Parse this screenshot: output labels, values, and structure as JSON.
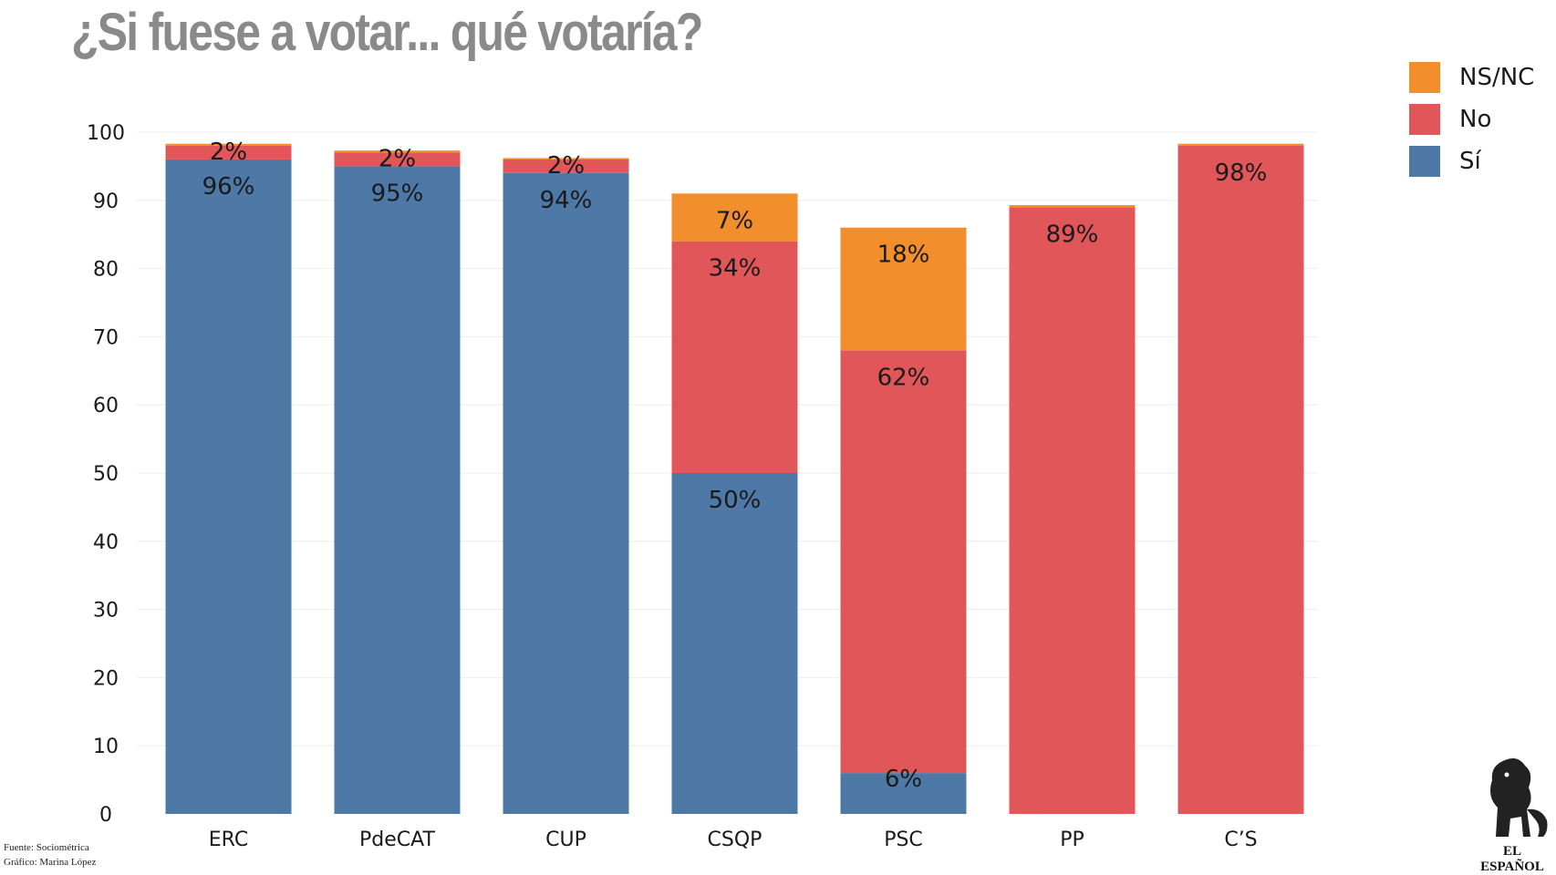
{
  "title": "¿Si fuese a votar... qué votaría?",
  "source_line1": "Fuente: Sociométrica",
  "source_line2": "Gráfico: Marina López",
  "logo_text": "EL ESPAÑOL",
  "colors": {
    "si": "#4e79a7",
    "no": "#e15759",
    "nsnc": "#f28e2b",
    "label": "#1a1a1a",
    "grid": "#eeeeee",
    "title": "#8a8a8a"
  },
  "chart_data": {
    "type": "bar",
    "stacked": true,
    "title": "¿Si fuese a votar... qué votaría?",
    "xlabel": "",
    "ylabel": "",
    "ylim": [
      0,
      100
    ],
    "yticks": [
      0,
      10,
      20,
      30,
      40,
      50,
      60,
      70,
      80,
      90,
      100
    ],
    "grid": true,
    "legend_position": "top-right",
    "categories": [
      "ERC",
      "PdeCAT",
      "CUP",
      "CSQP",
      "PSC",
      "PP",
      "C’S"
    ],
    "series": [
      {
        "name": "Sí",
        "color": "#4e79a7",
        "values": [
          96,
          95,
          94,
          50,
          6,
          0,
          0
        ],
        "labels": [
          "96%",
          "95%",
          "94%",
          "50%",
          "6%",
          "",
          ""
        ]
      },
      {
        "name": "No",
        "color": "#e15759",
        "values": [
          2,
          2,
          2,
          34,
          62,
          89,
          98
        ],
        "labels": [
          "2%",
          "2%",
          "2%",
          "34%",
          "62%",
          "89%",
          "98%"
        ]
      },
      {
        "name": "NS/NC",
        "color": "#f28e2b",
        "values": [
          0.3,
          0.3,
          0.2,
          7,
          18,
          0.3,
          0.3
        ],
        "labels": [
          "",
          "",
          "",
          "7%",
          "18%",
          "",
          ""
        ]
      }
    ],
    "legend": [
      "NS/NC",
      "No",
      "Sí"
    ]
  }
}
